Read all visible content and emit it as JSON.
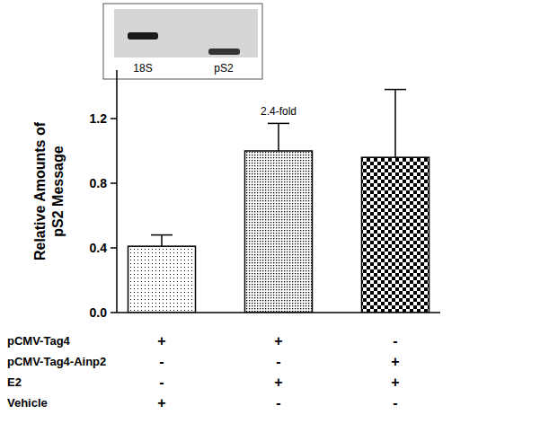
{
  "chart_data": {
    "type": "bar",
    "y_label": [
      "Relative Amounts of",
      "pS2 Message"
    ],
    "categories": [
      null,
      null,
      null
    ],
    "values": [
      0.41,
      1.0,
      0.96
    ],
    "errors": [
      0.07,
      0.17,
      0.42
    ],
    "color": "#000000",
    "ylim": [
      0,
      1.5
    ],
    "yticks": [
      {
        "value": 0,
        "label": "0.0"
      },
      {
        "value": 0.4,
        "label": "0.4"
      },
      {
        "value": 0.8,
        "label": "0.8"
      },
      {
        "value": 1.2,
        "label": "1.2"
      }
    ],
    "grid": false,
    "annotations": [
      {
        "text": "2.4-fold",
        "index": 1
      }
    ],
    "conditions": [
      {
        "label": "pCMV-Tag4",
        "marks": [
          "+",
          "+",
          "-"
        ]
      },
      {
        "label": "pCMV-Tag4-Ainp2",
        "marks": [
          "-",
          "-",
          "+"
        ]
      },
      {
        "label": "E2",
        "marks": [
          "-",
          "+",
          "+"
        ]
      },
      {
        "label": "Vehicle",
        "marks": [
          "+",
          "-",
          "-"
        ]
      }
    ],
    "inset": {
      "labels": [
        "18S",
        "pS2"
      ]
    }
  }
}
